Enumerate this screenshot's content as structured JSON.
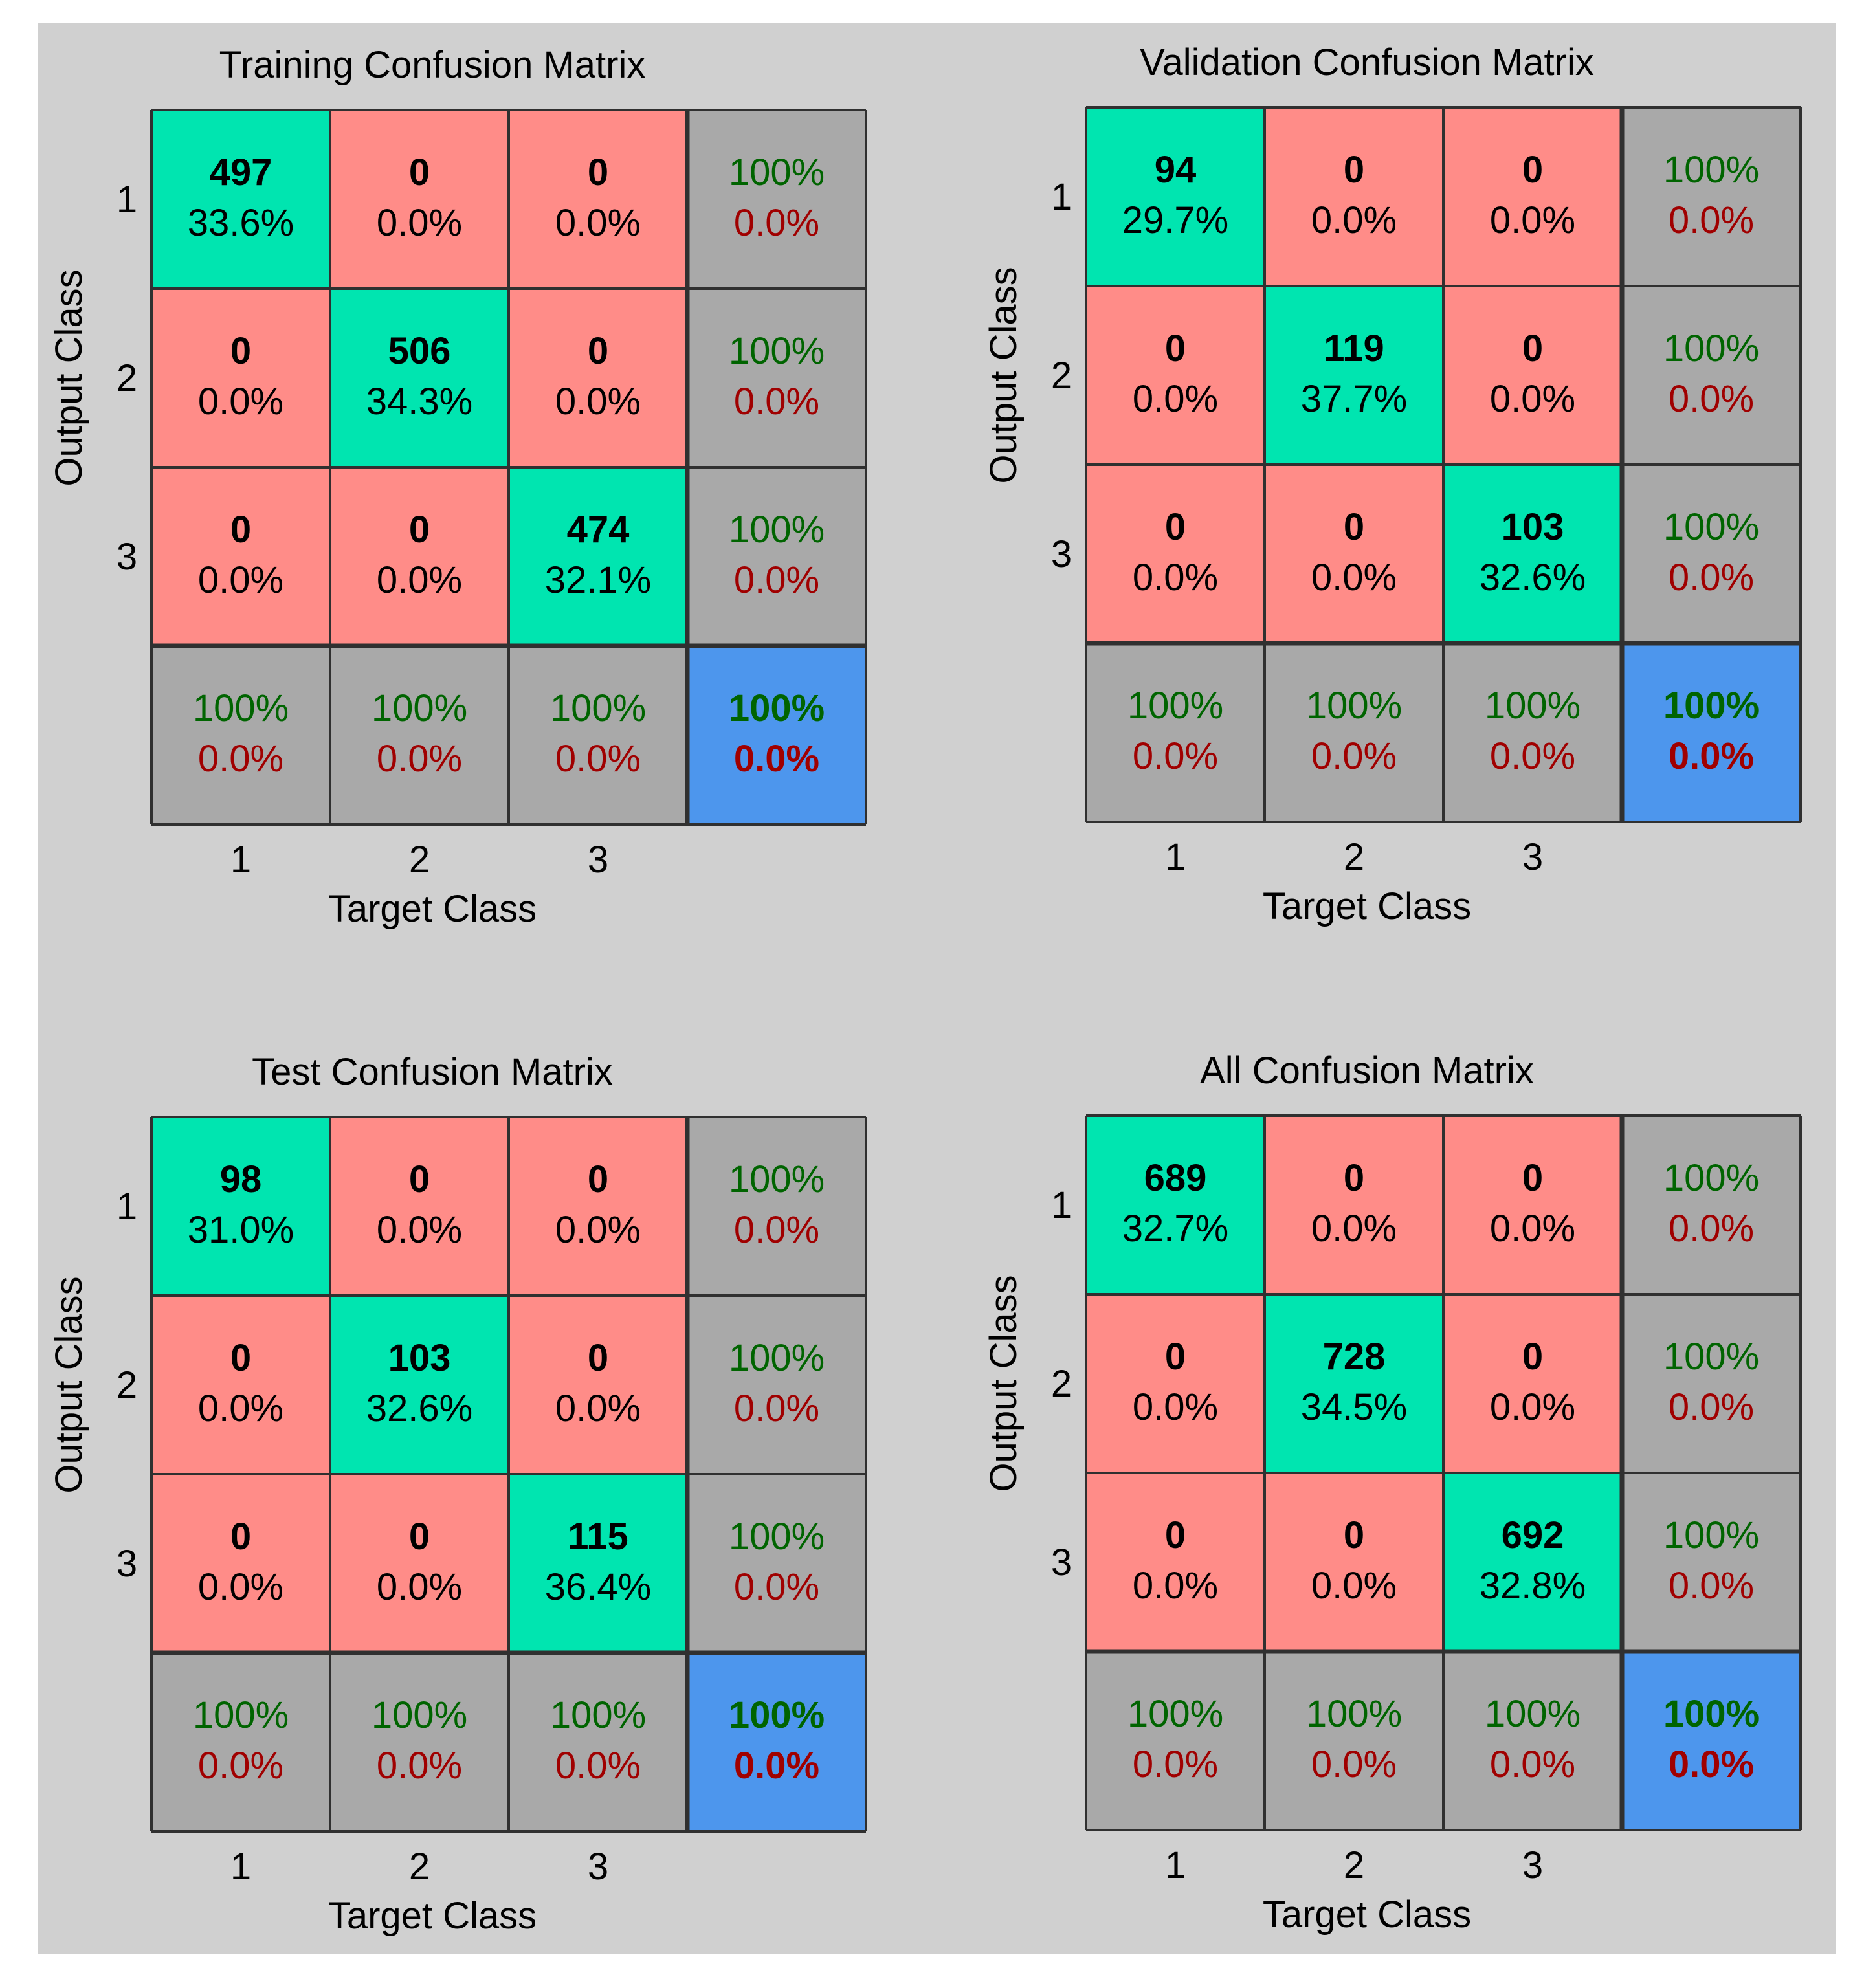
{
  "chart_data": [
    {
      "type": "heatmap",
      "title": "Training Confusion Matrix",
      "xlabel": "Target Class",
      "ylabel": "Output Class",
      "x_tick_labels": [
        "1",
        "2",
        "3"
      ],
      "y_tick_labels": [
        "1",
        "2",
        "3"
      ],
      "counts": [
        [
          497,
          0,
          0
        ],
        [
          0,
          506,
          0
        ],
        [
          0,
          0,
          474
        ]
      ],
      "percents": [
        [
          "33.6%",
          "0.0%",
          "0.0%"
        ],
        [
          "0.0%",
          "34.3%",
          "0.0%"
        ],
        [
          "0.0%",
          "0.0%",
          "32.1%"
        ]
      ],
      "row_summary": [
        [
          "100%",
          "0.0%"
        ],
        [
          "100%",
          "0.0%"
        ],
        [
          "100%",
          "0.0%"
        ]
      ],
      "col_summary": [
        [
          "100%",
          "0.0%"
        ],
        [
          "100%",
          "0.0%"
        ],
        [
          "100%",
          "0.0%"
        ]
      ],
      "overall": [
        "100%",
        "0.0%"
      ]
    },
    {
      "type": "heatmap",
      "title": "Validation Confusion Matrix",
      "xlabel": "Target Class",
      "ylabel": "Output Class",
      "x_tick_labels": [
        "1",
        "2",
        "3"
      ],
      "y_tick_labels": [
        "1",
        "2",
        "3"
      ],
      "counts": [
        [
          94,
          0,
          0
        ],
        [
          0,
          119,
          0
        ],
        [
          0,
          0,
          103
        ]
      ],
      "percents": [
        [
          "29.7%",
          "0.0%",
          "0.0%"
        ],
        [
          "0.0%",
          "37.7%",
          "0.0%"
        ],
        [
          "0.0%",
          "0.0%",
          "32.6%"
        ]
      ],
      "row_summary": [
        [
          "100%",
          "0.0%"
        ],
        [
          "100%",
          "0.0%"
        ],
        [
          "100%",
          "0.0%"
        ]
      ],
      "col_summary": [
        [
          "100%",
          "0.0%"
        ],
        [
          "100%",
          "0.0%"
        ],
        [
          "100%",
          "0.0%"
        ]
      ],
      "overall": [
        "100%",
        "0.0%"
      ]
    },
    {
      "type": "heatmap",
      "title": "Test Confusion Matrix",
      "xlabel": "Target Class",
      "ylabel": "Output Class",
      "x_tick_labels": [
        "1",
        "2",
        "3"
      ],
      "y_tick_labels": [
        "1",
        "2",
        "3"
      ],
      "counts": [
        [
          98,
          0,
          0
        ],
        [
          0,
          103,
          0
        ],
        [
          0,
          0,
          115
        ]
      ],
      "percents": [
        [
          "31.0%",
          "0.0%",
          "0.0%"
        ],
        [
          "0.0%",
          "32.6%",
          "0.0%"
        ],
        [
          "0.0%",
          "0.0%",
          "36.4%"
        ]
      ],
      "row_summary": [
        [
          "100%",
          "0.0%"
        ],
        [
          "100%",
          "0.0%"
        ],
        [
          "100%",
          "0.0%"
        ]
      ],
      "col_summary": [
        [
          "100%",
          "0.0%"
        ],
        [
          "100%",
          "0.0%"
        ],
        [
          "100%",
          "0.0%"
        ]
      ],
      "overall": [
        "100%",
        "0.0%"
      ]
    },
    {
      "type": "heatmap",
      "title": "All Confusion Matrix",
      "xlabel": "Target Class",
      "ylabel": "Output Class",
      "x_tick_labels": [
        "1",
        "2",
        "3"
      ],
      "y_tick_labels": [
        "1",
        "2",
        "3"
      ],
      "counts": [
        [
          689,
          0,
          0
        ],
        [
          0,
          728,
          0
        ],
        [
          0,
          0,
          692
        ]
      ],
      "percents": [
        [
          "32.7%",
          "0.0%",
          "0.0%"
        ],
        [
          "0.0%",
          "34.5%",
          "0.0%"
        ],
        [
          "0.0%",
          "0.0%",
          "32.8%"
        ]
      ],
      "row_summary": [
        [
          "100%",
          "0.0%"
        ],
        [
          "100%",
          "0.0%"
        ],
        [
          "100%",
          "0.0%"
        ]
      ],
      "col_summary": [
        [
          "100%",
          "0.0%"
        ],
        [
          "100%",
          "0.0%"
        ],
        [
          "100%",
          "0.0%"
        ]
      ],
      "overall": [
        "100%",
        "0.0%"
      ]
    }
  ],
  "colors": {
    "correct": "#00e5b0",
    "incorrect": "#ff8c88",
    "summary": "#a9a9a9",
    "overall": "#4d96ed",
    "good_text": "#006400",
    "bad_text": "#a00000",
    "background": "#d0d0d0"
  }
}
